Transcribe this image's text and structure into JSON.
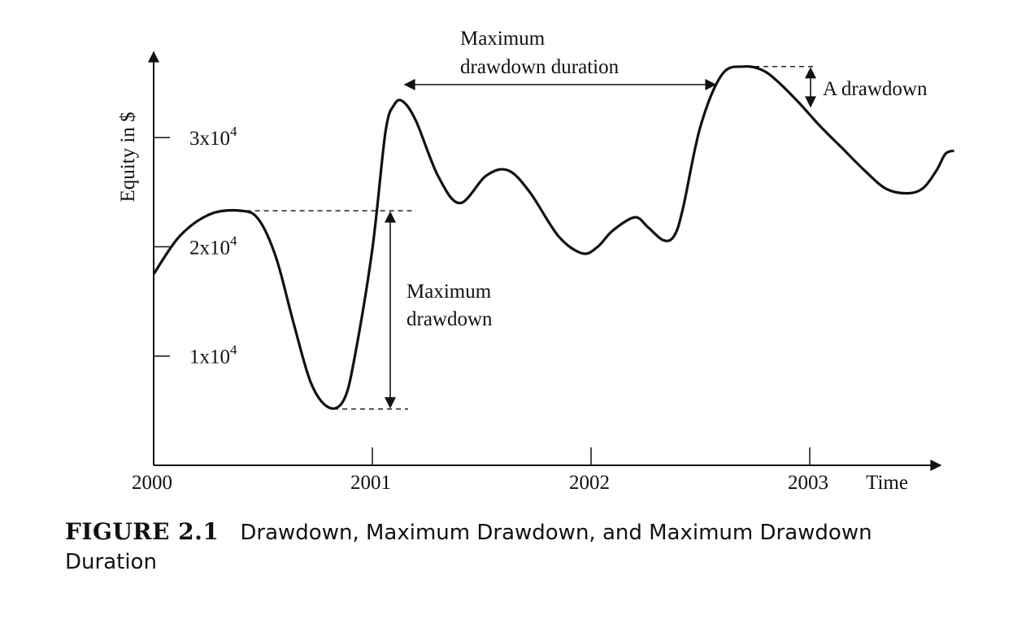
{
  "chart_data": {
    "type": "line",
    "ylabel": "Equity in $",
    "xlabel": "Time",
    "x_ticks": [
      "2000",
      "2001",
      "2002",
      "2003"
    ],
    "y_ticks": [
      {
        "value": 10000,
        "base": "1x10",
        "exp": "4"
      },
      {
        "value": 20000,
        "base": "2x10",
        "exp": "4"
      },
      {
        "value": 30000,
        "base": "3x10",
        "exp": "4"
      }
    ],
    "xlim": [
      2000,
      2003.72
    ],
    "ylim": [
      0,
      37000
    ],
    "series": [
      {
        "x": [
          2000.0,
          2000.12,
          2000.26,
          2000.4,
          2000.48,
          2000.56,
          2000.64,
          2000.72,
          2000.8,
          2000.87,
          2000.92,
          2001.0,
          2001.06,
          2001.1,
          2001.14,
          2001.2,
          2001.3,
          2001.4,
          2001.52,
          2001.62,
          2001.72,
          2001.85,
          2001.96,
          2002.03,
          2002.1,
          2002.2,
          2002.26,
          2002.33,
          2002.38,
          2002.42,
          2002.5,
          2002.6,
          2002.7,
          2002.78,
          2002.85,
          2002.95,
          2003.05,
          2003.15,
          2003.25,
          2003.35,
          2003.45,
          2003.52,
          2003.58,
          2003.62,
          2003.66
        ],
        "y": [
          17500,
          21000,
          23000,
          23300,
          22500,
          19000,
          13000,
          7500,
          5300,
          6000,
          10000,
          19800,
          30500,
          33000,
          33300,
          31500,
          26500,
          24000,
          26500,
          27000,
          25000,
          21000,
          19400,
          20000,
          21500,
          22700,
          21800,
          20600,
          21000,
          23500,
          31000,
          35800,
          36500,
          36200,
          35200,
          33200,
          31000,
          29000,
          27000,
          25300,
          24900,
          25400,
          27000,
          28500,
          28800
        ]
      }
    ],
    "annotations": {
      "max_drawdown": [
        "Maximum",
        "drawdown"
      ],
      "max_drawdown_duration": [
        "Maximum",
        "drawdown duration"
      ],
      "a_drawdown": "A drawdown"
    }
  },
  "caption": {
    "figure_label": "FIGURE 2.1",
    "text": "Drawdown, Maximum Drawdown, and Maximum Drawdown Duration"
  },
  "colors": {
    "line": "#111111",
    "background": "#ffffff"
  }
}
